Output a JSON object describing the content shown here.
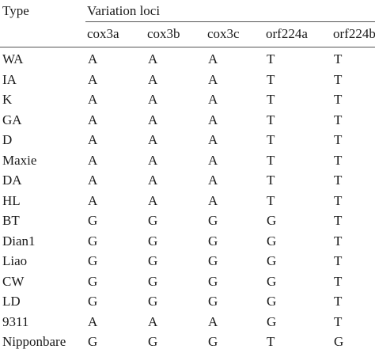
{
  "table": {
    "header": {
      "type_label": "Type",
      "group_label": "Variation loci",
      "columns": [
        "cox3a",
        "cox3b",
        "cox3c",
        "orf224a",
        "orf224b"
      ]
    },
    "rows": [
      {
        "type": "WA",
        "values": [
          "A",
          "A",
          "A",
          "T",
          "T"
        ]
      },
      {
        "type": "IA",
        "values": [
          "A",
          "A",
          "A",
          "T",
          "T"
        ]
      },
      {
        "type": "K",
        "values": [
          "A",
          "A",
          "A",
          "T",
          "T"
        ]
      },
      {
        "type": "GA",
        "values": [
          "A",
          "A",
          "A",
          "T",
          "T"
        ]
      },
      {
        "type": "D",
        "values": [
          "A",
          "A",
          "A",
          "T",
          "T"
        ]
      },
      {
        "type": "Maxie",
        "values": [
          "A",
          "A",
          "A",
          "T",
          "T"
        ]
      },
      {
        "type": "DA",
        "values": [
          "A",
          "A",
          "A",
          "T",
          "T"
        ]
      },
      {
        "type": "HL",
        "values": [
          "A",
          "A",
          "A",
          "T",
          "T"
        ]
      },
      {
        "type": "BT",
        "values": [
          "G",
          "G",
          "G",
          "G",
          "T"
        ]
      },
      {
        "type": "Dian1",
        "values": [
          "G",
          "G",
          "G",
          "G",
          "T"
        ]
      },
      {
        "type": "Liao",
        "values": [
          "G",
          "G",
          "G",
          "G",
          "T"
        ]
      },
      {
        "type": "CW",
        "values": [
          "G",
          "G",
          "G",
          "G",
          "T"
        ]
      },
      {
        "type": "LD",
        "values": [
          "G",
          "G",
          "G",
          "G",
          "T"
        ]
      },
      {
        "type": "9311",
        "values": [
          "A",
          "A",
          "A",
          "G",
          "T"
        ]
      },
      {
        "type": "Nipponbare",
        "values": [
          "G",
          "G",
          "G",
          "T",
          "G"
        ]
      }
    ]
  }
}
